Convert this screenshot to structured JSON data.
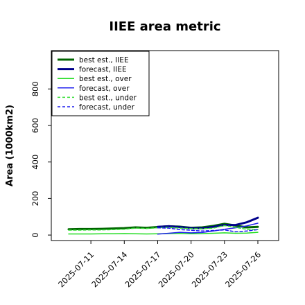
{
  "chart_data": {
    "type": "line",
    "title": "IIEE area metric",
    "xlabel": "",
    "ylabel": "Area (1000km2)",
    "ylim": [
      -30,
      1010
    ],
    "yticks": [
      0,
      200,
      400,
      600,
      800
    ],
    "x": [
      "2025-07-09",
      "2025-07-10",
      "2025-07-11",
      "2025-07-12",
      "2025-07-13",
      "2025-07-14",
      "2025-07-15",
      "2025-07-16",
      "2025-07-17",
      "2025-07-18",
      "2025-07-19",
      "2025-07-20",
      "2025-07-21",
      "2025-07-22",
      "2025-07-23",
      "2025-07-24",
      "2025-07-25",
      "2025-07-26"
    ],
    "xtick_labels": [
      "2025-07-11",
      "2025-07-14",
      "2025-07-17",
      "2025-07-20",
      "2025-07-23",
      "2025-07-26"
    ],
    "xtick_highlight": "2025-07-17",
    "xtick_highlight_color": "#228b22",
    "legend_position": "upper-left",
    "grid": false,
    "series": [
      {
        "name": "best est., IIEE",
        "color": "#006400",
        "style": "solid",
        "width": 3,
        "values": [
          32,
          33,
          33,
          34,
          36,
          38,
          42,
          40,
          44,
          48,
          46,
          40,
          42,
          50,
          62,
          52,
          42,
          45
        ]
      },
      {
        "name": "forecast, IIEE",
        "color": "#00008b",
        "style": "solid",
        "width": 3,
        "values": [
          null,
          null,
          null,
          null,
          null,
          null,
          null,
          null,
          45,
          48,
          44,
          38,
          37,
          45,
          55,
          55,
          70,
          95
        ]
      },
      {
        "name": "best est., over",
        "color": "#22dd22",
        "style": "solid",
        "width": 1.5,
        "values": [
          6,
          6,
          6,
          7,
          7,
          8,
          7,
          6,
          7,
          8,
          9,
          7,
          8,
          10,
          12,
          10,
          11,
          15
        ]
      },
      {
        "name": "forecast, over",
        "color": "#2222ee",
        "style": "solid",
        "width": 1.5,
        "values": [
          null,
          null,
          null,
          null,
          null,
          null,
          null,
          null,
          5,
          10,
          15,
          12,
          14,
          22,
          32,
          40,
          50,
          65
        ]
      },
      {
        "name": "best est., under",
        "color": "#33dd33",
        "style": "dashed",
        "width": 1.5,
        "values": [
          27,
          27,
          28,
          28,
          30,
          32,
          38,
          36,
          40,
          42,
          38,
          35,
          34,
          38,
          52,
          42,
          32,
          30
        ]
      },
      {
        "name": "forecast, under",
        "color": "#1a1aee",
        "style": "dashed",
        "width": 1.5,
        "values": [
          null,
          null,
          null,
          null,
          null,
          null,
          null,
          null,
          40,
          38,
          30,
          26,
          22,
          25,
          28,
          18,
          22,
          30
        ]
      }
    ]
  }
}
